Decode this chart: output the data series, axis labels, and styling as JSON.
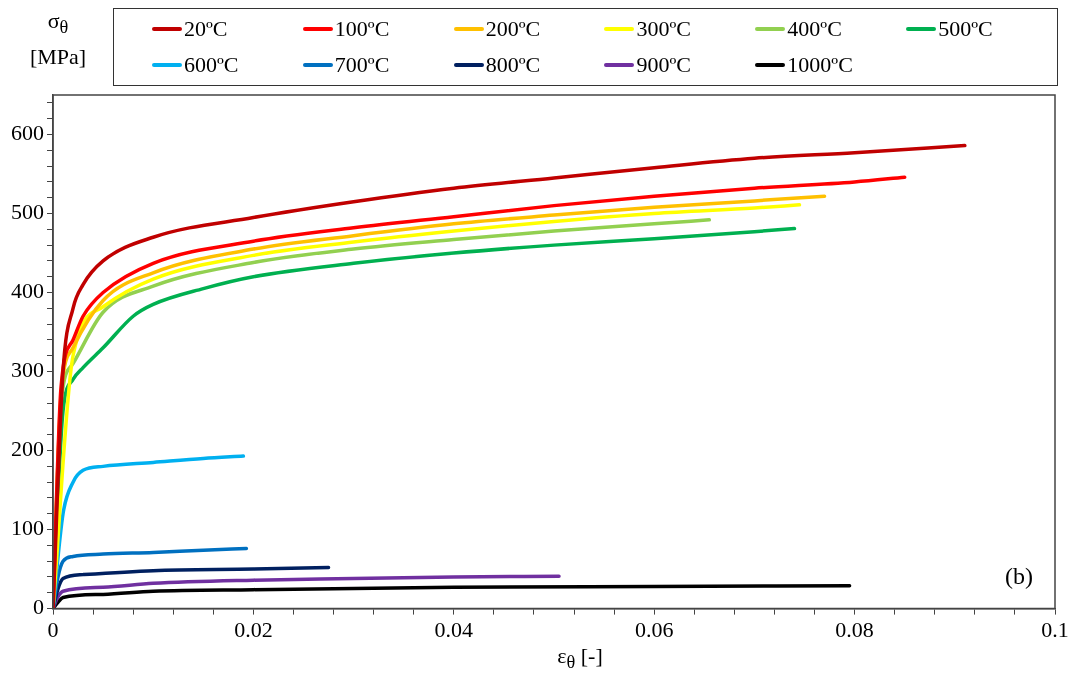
{
  "chart_data": {
    "type": "line",
    "xlabel": "ε$_{θ}$ [-]",
    "ylabel": "σ$_{θ}$ [MPa]",
    "annotations": [
      "(b)"
    ],
    "xlim": [
      0,
      0.1
    ],
    "ylim": [
      0,
      650
    ],
    "xticks": [
      0,
      {
        "value": 0.004,
        "label": null
      },
      {
        "value": 0.008,
        "label": null
      },
      {
        "value": 0.012,
        "label": null
      },
      {
        "value": 0.016,
        "label": null
      },
      {
        "value": 0.02,
        "label": "0.02"
      },
      {
        "value": 0.024,
        "label": null
      },
      {
        "value": 0.028,
        "label": null
      },
      {
        "value": 0.032,
        "label": null
      },
      {
        "value": 0.036,
        "label": null
      },
      {
        "value": 0.04,
        "label": "0.04"
      },
      {
        "value": 0.044,
        "label": null
      },
      {
        "value": 0.048,
        "label": null
      },
      {
        "value": 0.052,
        "label": null
      },
      {
        "value": 0.056,
        "label": null
      },
      {
        "value": 0.06,
        "label": "0.06"
      },
      {
        "value": 0.064,
        "label": null
      },
      {
        "value": 0.068,
        "label": null
      },
      {
        "value": 0.072,
        "label": null
      },
      {
        "value": 0.076,
        "label": null
      },
      {
        "value": 0.08,
        "label": "0.08"
      },
      {
        "value": 0.084,
        "label": null
      },
      {
        "value": 0.088,
        "label": null
      },
      {
        "value": 0.092,
        "label": null
      },
      {
        "value": 0.096,
        "label": null
      },
      {
        "value": 0.1,
        "label": "0.1"
      }
    ],
    "yticks": [
      0,
      {
        "value": 20,
        "label": null
      },
      {
        "value": 40,
        "label": null
      },
      {
        "value": 60,
        "label": null
      },
      {
        "value": 80,
        "label": null
      },
      100,
      {
        "value": 120,
        "label": null
      },
      {
        "value": 140,
        "label": null
      },
      {
        "value": 160,
        "label": null
      },
      {
        "value": 180,
        "label": null
      },
      200,
      {
        "value": 220,
        "label": null
      },
      {
        "value": 240,
        "label": null
      },
      {
        "value": 260,
        "label": null
      },
      {
        "value": 280,
        "label": null
      },
      300,
      {
        "value": 320,
        "label": null
      },
      {
        "value": 340,
        "label": null
      },
      {
        "value": 360,
        "label": null
      },
      {
        "value": 380,
        "label": null
      },
      400,
      {
        "value": 420,
        "label": null
      },
      {
        "value": 440,
        "label": null
      },
      {
        "value": 460,
        "label": null
      },
      {
        "value": 480,
        "label": null
      },
      500,
      {
        "value": 520,
        "label": null
      },
      {
        "value": 540,
        "label": null
      },
      {
        "value": 560,
        "label": null
      },
      {
        "value": 580,
        "label": null
      },
      600,
      {
        "value": 620,
        "label": null
      },
      {
        "value": 640,
        "label": null
      }
    ],
    "grid": false,
    "legend": "top",
    "marker": "none",
    "line_style": "solid",
    "series": [
      {
        "name": "20ºC",
        "color": "#c00000",
        "x": [
          0,
          0.001,
          0.002,
          0.003,
          0.005,
          0.01,
          0.02,
          0.03,
          0.04,
          0.05,
          0.06,
          0.07,
          0.08,
          0.091
        ],
        "values": [
          0,
          300,
          380,
          410,
          440,
          470,
          495,
          515,
          532,
          545,
          558,
          570,
          577,
          586
        ]
      },
      {
        "name": "100ºC",
        "color": "#ff0000",
        "x": [
          0,
          0.0008,
          0.002,
          0.003,
          0.005,
          0.01,
          0.02,
          0.03,
          0.04,
          0.05,
          0.06,
          0.07,
          0.08,
          0.085
        ],
        "values": [
          0,
          280,
          340,
          370,
          400,
          437,
          465,
          482,
          496,
          510,
          522,
          532,
          540,
          546
        ]
      },
      {
        "name": "200ºC",
        "color": "#ffc000",
        "x": [
          0,
          0.0008,
          0.002,
          0.005,
          0.01,
          0.02,
          0.03,
          0.04,
          0.05,
          0.06,
          0.07,
          0.077
        ],
        "values": [
          0,
          270,
          330,
          390,
          425,
          455,
          472,
          487,
          498,
          508,
          516,
          522
        ]
      },
      {
        "name": "300ºC",
        "color": "#ffff00",
        "x": [
          0,
          0.002,
          0.005,
          0.01,
          0.02,
          0.03,
          0.04,
          0.05,
          0.06,
          0.07,
          0.0745
        ],
        "values": [
          0,
          320,
          382,
          417,
          447,
          464,
          478,
          490,
          500,
          507,
          511
        ]
      },
      {
        "name": "400ºC",
        "color": "#92d050",
        "x": [
          0,
          0.0008,
          0.002,
          0.005,
          0.01,
          0.02,
          0.03,
          0.04,
          0.05,
          0.06,
          0.0655
        ],
        "values": [
          0,
          260,
          310,
          375,
          408,
          438,
          455,
          467,
          478,
          487,
          492
        ]
      },
      {
        "name": "500ºC",
        "color": "#00b050",
        "x": [
          0,
          0.001,
          0.002,
          0.003,
          0.005,
          0.008,
          0.01,
          0.015,
          0.02,
          0.03,
          0.04,
          0.05,
          0.06,
          0.07,
          0.074
        ],
        "values": [
          0,
          250,
          290,
          305,
          330,
          370,
          385,
          405,
          420,
          437,
          450,
          460,
          468,
          477,
          481
        ]
      },
      {
        "name": "600ºC",
        "color": "#00b0f0",
        "x": [
          0,
          0.001,
          0.002,
          0.003,
          0.005,
          0.01,
          0.015,
          0.019
        ],
        "values": [
          0,
          120,
          160,
          175,
          180,
          185,
          190,
          193
        ]
      },
      {
        "name": "700ºC",
        "color": "#0070c0",
        "x": [
          0,
          0.0005,
          0.001,
          0.002,
          0.005,
          0.01,
          0.015,
          0.0193
        ],
        "values": [
          0,
          40,
          60,
          66,
          69,
          71,
          74,
          76
        ]
      },
      {
        "name": "800ºC",
        "color": "#002060",
        "x": [
          0,
          0.0005,
          0.001,
          0.003,
          0.01,
          0.02,
          0.0275
        ],
        "values": [
          0,
          25,
          38,
          43,
          48,
          50,
          52
        ]
      },
      {
        "name": "900ºC",
        "color": "#7030a0",
        "x": [
          0,
          0.0005,
          0.001,
          0.005,
          0.01,
          0.02,
          0.03,
          0.04,
          0.0505
        ],
        "values": [
          0,
          15,
          22,
          27,
          32,
          36,
          38,
          40,
          41
        ]
      },
      {
        "name": "1000ºC",
        "color": "#000000",
        "x": [
          0,
          0.0005,
          0.001,
          0.005,
          0.01,
          0.02,
          0.04,
          0.06,
          0.0795
        ],
        "values": [
          0,
          8,
          14,
          18,
          22,
          24,
          27,
          28,
          29
        ]
      }
    ]
  }
}
